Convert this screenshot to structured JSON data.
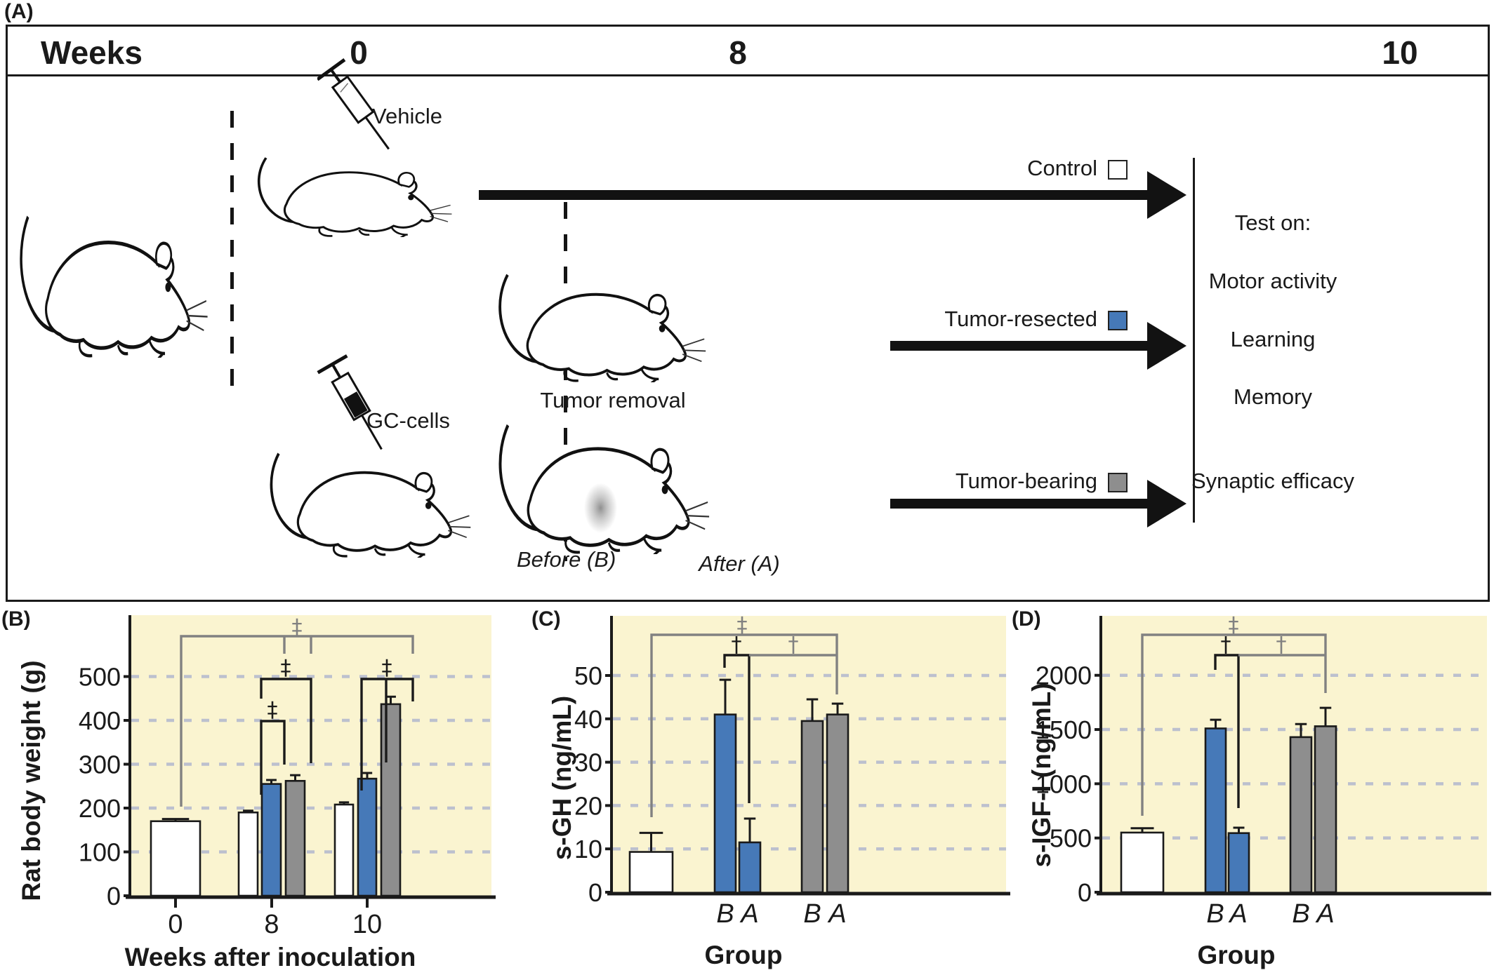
{
  "colors": {
    "bar_white": "#ffffff",
    "bar_blue": "#4679b8",
    "bar_gray": "#8e8e8e",
    "plot_bg": "#faf4d0",
    "grid": "#bcc0ce",
    "bracket_gray": "#818181",
    "ink": "#1a1a1a"
  },
  "panel_a": {
    "label": "(A)",
    "header": {
      "title": "Weeks",
      "ticks": [
        "0",
        "8",
        "10"
      ]
    },
    "injections": [
      {
        "label": "Vehicle"
      },
      {
        "label": "GC-cells"
      }
    ],
    "tumor_removal_label": "Tumor removal",
    "phase_labels": {
      "before": "Before (B)",
      "after": "After (A)"
    },
    "arms": [
      {
        "label": "Control",
        "swatch": "white"
      },
      {
        "label": "Tumor-resected",
        "swatch": "blue"
      },
      {
        "label": "Tumor-bearing",
        "swatch": "gray"
      }
    ],
    "tests": {
      "title": "Test on:",
      "items": [
        "Motor activity",
        "Learning",
        "Memory",
        "Synaptic efficacy"
      ]
    }
  },
  "chart_data": [
    {
      "id": "B",
      "panel_label": "(B)",
      "type": "bar",
      "xlabel": "Weeks after inoculation",
      "ylabel": "Rat body weight (g)",
      "categories": [
        "0",
        "8",
        "10"
      ],
      "series": [
        {
          "name": "Control",
          "color": "white",
          "values": [
            170,
            190,
            208
          ],
          "errors": [
            5,
            4,
            5
          ]
        },
        {
          "name": "Tumor-resected",
          "color": "blue",
          "values": [
            null,
            255,
            267
          ],
          "errors": [
            null,
            9,
            13
          ]
        },
        {
          "name": "Tumor-bearing",
          "color": "gray",
          "values": [
            null,
            262,
            437
          ],
          "errors": [
            null,
            13,
            17
          ]
        }
      ],
      "ylim": [
        0,
        640
      ],
      "yticks": [
        0,
        100,
        200,
        300,
        400,
        500
      ],
      "grid": "dashed-horizontal",
      "legend_position": "none",
      "significance": [
        {
          "symbol": "‡",
          "comparison": "week 0 control vs week 8 and week 10 tumor groups"
        },
        {
          "symbol": "‡",
          "comparison": "week 8 control vs tumor-resected"
        },
        {
          "symbol": "‡",
          "comparison": "week 8 control vs tumor-bearing"
        },
        {
          "symbol": "‡",
          "comparison": "week 10 control vs tumor-bearing"
        }
      ]
    },
    {
      "id": "C",
      "panel_label": "(C)",
      "type": "bar",
      "xlabel": "Group",
      "ylabel": "s-GH (ng/mL)",
      "bars": [
        {
          "group": "Control",
          "tick": "",
          "color": "white",
          "value": 9.3,
          "error": 4.4
        },
        {
          "group": "Tumor-resected",
          "tick": "B",
          "color": "blue",
          "value": 41,
          "error": 8
        },
        {
          "group": "Tumor-resected",
          "tick": "A",
          "color": "blue",
          "value": 11.5,
          "error": 5.5
        },
        {
          "group": "Tumor-bearing",
          "tick": "B",
          "color": "gray",
          "value": 39.5,
          "error": 5
        },
        {
          "group": "Tumor-bearing",
          "tick": "A",
          "color": "gray",
          "value": 41,
          "error": 2.5
        }
      ],
      "ylim": [
        0,
        64
      ],
      "yticks": [
        0,
        10,
        20,
        30,
        40,
        50
      ],
      "grid": "dashed-horizontal",
      "significance": [
        {
          "symbol": "‡",
          "comparison": "control vs tumor groups"
        },
        {
          "symbol": "†",
          "comparison": "tumor-resected B vs A"
        },
        {
          "symbol": "†",
          "comparison": "tumor-resected vs tumor-bearing A"
        }
      ]
    },
    {
      "id": "D",
      "panel_label": "(D)",
      "type": "bar",
      "xlabel": "Group",
      "ylabel": "s-IGF-I (ng/mL)",
      "bars": [
        {
          "group": "Control",
          "tick": "",
          "color": "white",
          "value": 550,
          "error": 40
        },
        {
          "group": "Tumor-resected",
          "tick": "B",
          "color": "blue",
          "value": 1510,
          "error": 80
        },
        {
          "group": "Tumor-resected",
          "tick": "A",
          "color": "blue",
          "value": 545,
          "error": 50
        },
        {
          "group": "Tumor-bearing",
          "tick": "B",
          "color": "gray",
          "value": 1430,
          "error": 120
        },
        {
          "group": "Tumor-bearing",
          "tick": "A",
          "color": "gray",
          "value": 1530,
          "error": 170
        }
      ],
      "ylim": [
        0,
        2600
      ],
      "yticks": [
        0,
        500,
        1000,
        1500,
        2000
      ],
      "grid": "dashed-horizontal",
      "significance": [
        {
          "symbol": "‡",
          "comparison": "control vs tumor groups"
        },
        {
          "symbol": "†",
          "comparison": "tumor-resected B vs A"
        },
        {
          "symbol": "†",
          "comparison": "tumor-resected vs tumor-bearing A"
        }
      ]
    }
  ]
}
